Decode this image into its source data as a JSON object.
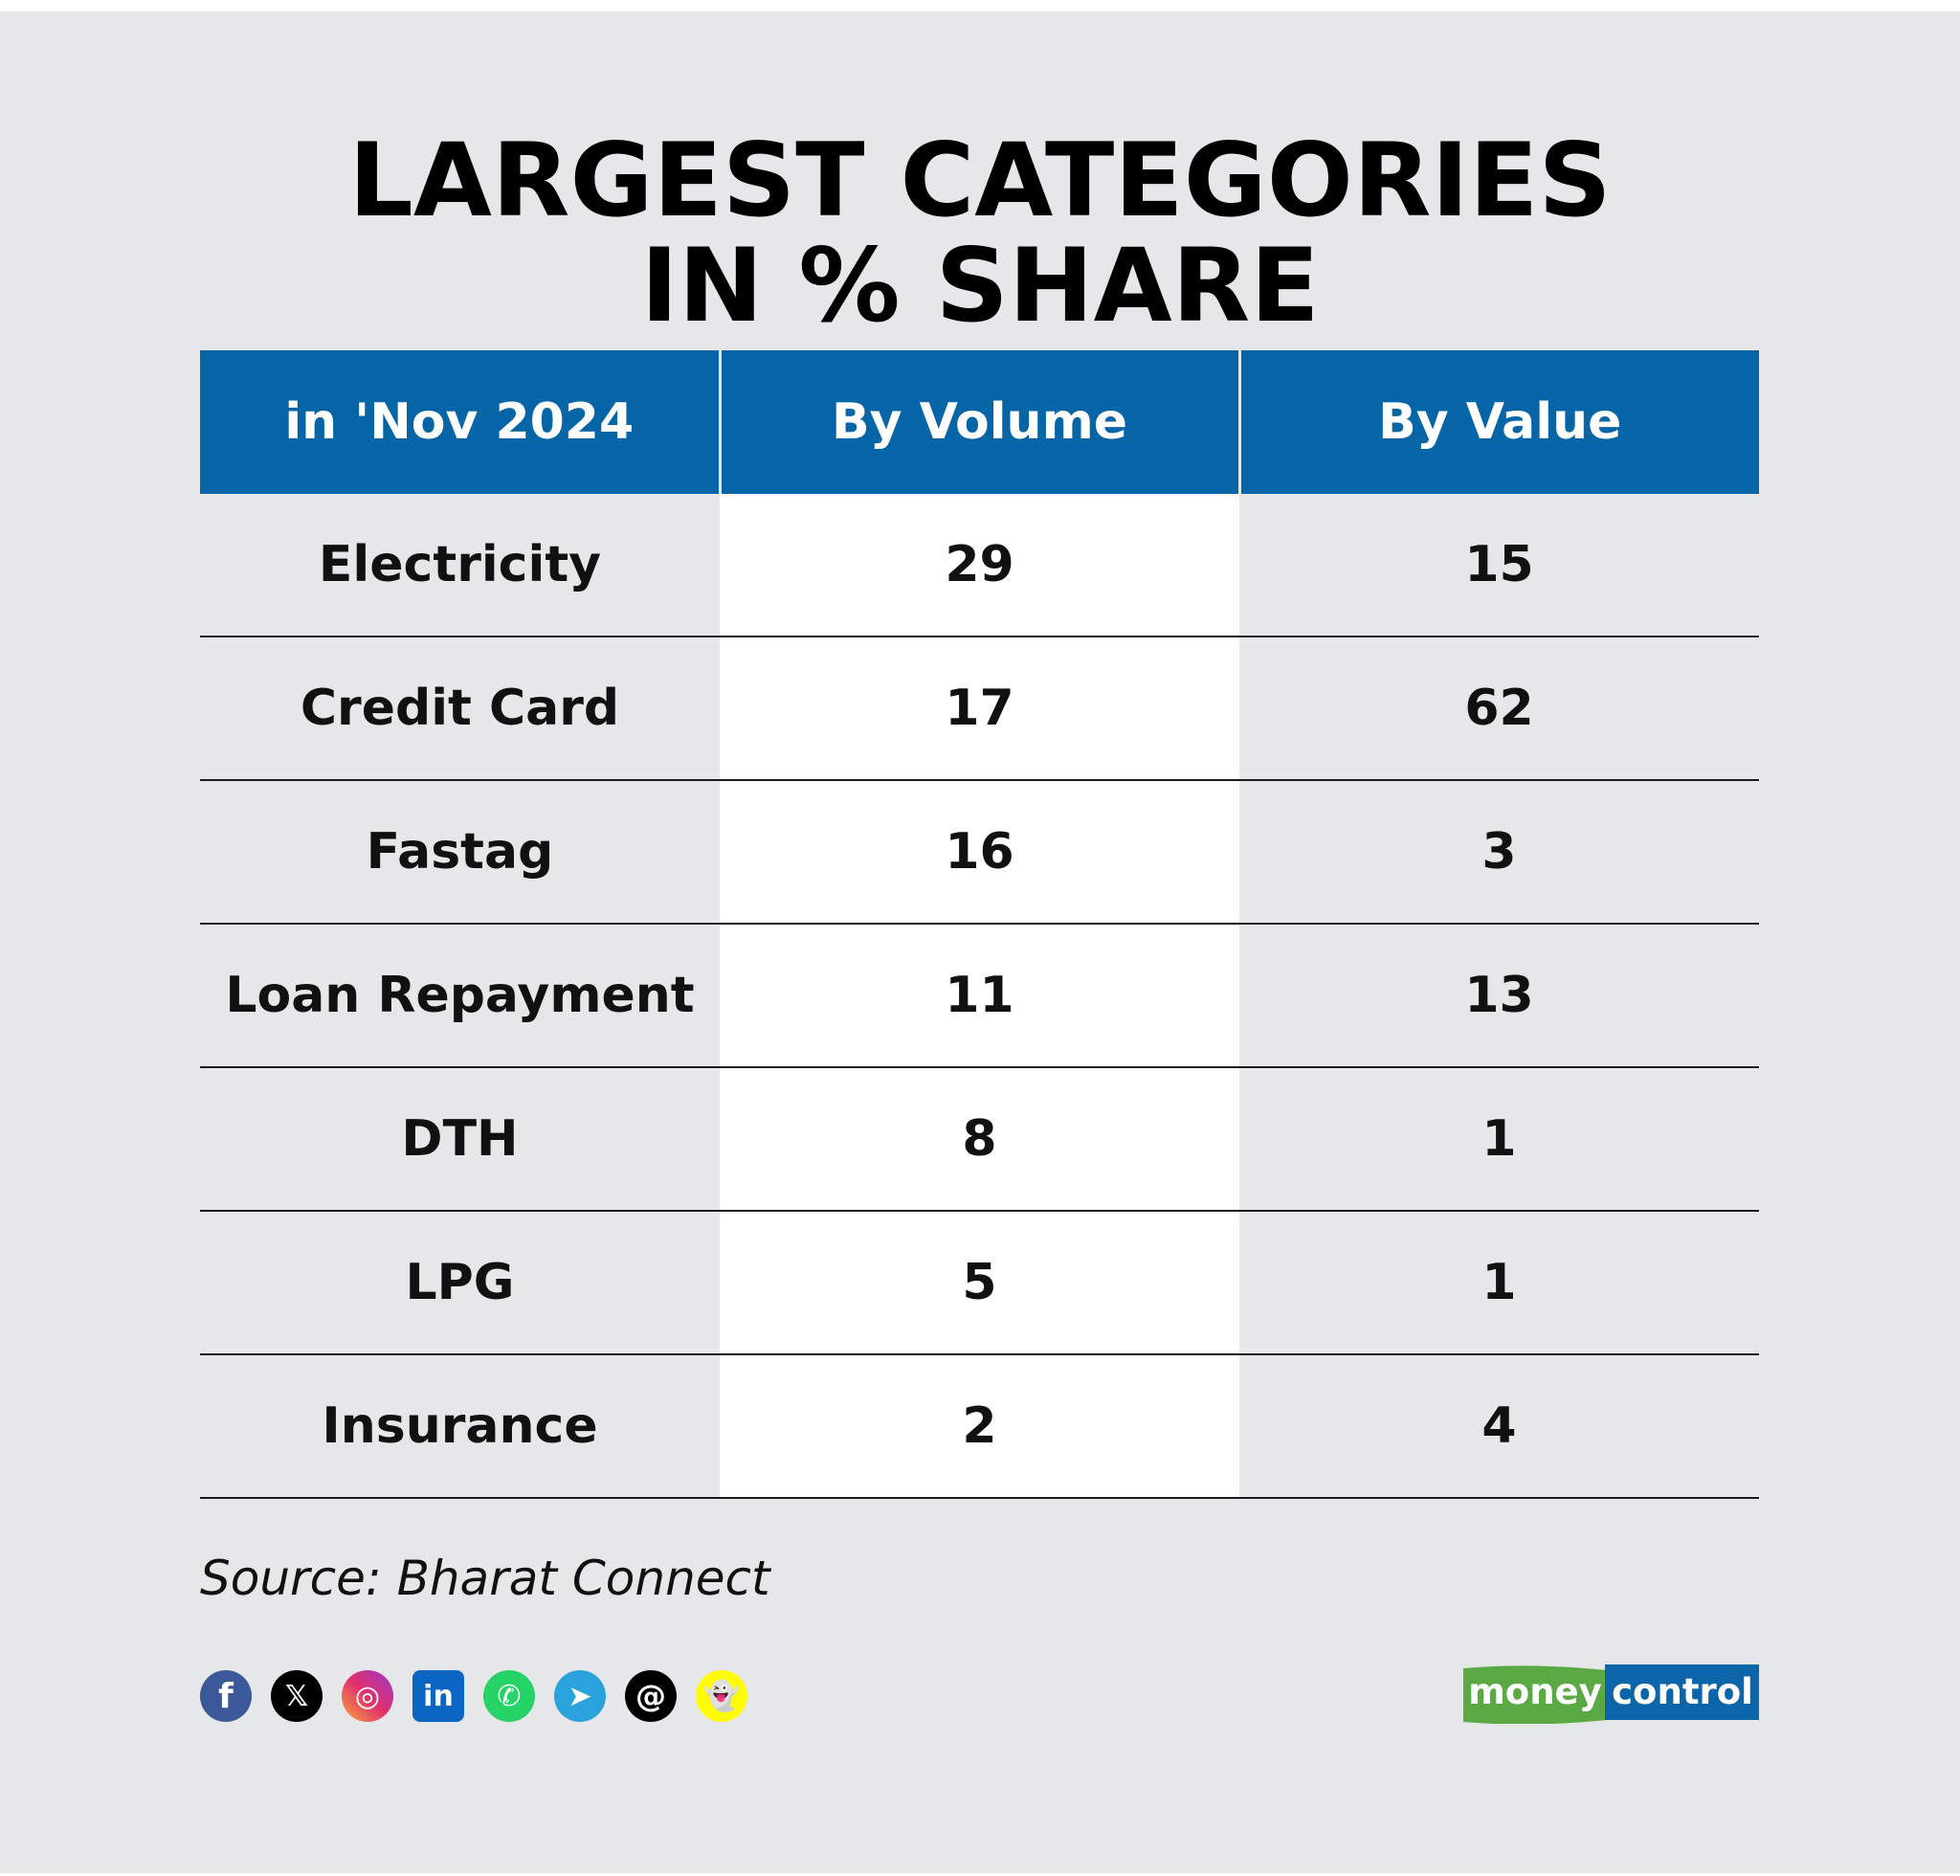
{
  "title": {
    "line1": "LARGEST CATEGORIES",
    "line2": "IN % SHARE"
  },
  "chart_data": {
    "type": "table",
    "title": "LARGEST CATEGORIES IN % SHARE",
    "columns": [
      "in 'Nov 2024",
      "By Volume",
      "By Value"
    ],
    "rows": [
      {
        "category": "Electricity",
        "volume": "29",
        "value": "15"
      },
      {
        "category": "Credit Card",
        "volume": "17",
        "value": "62"
      },
      {
        "category": "Fastag",
        "volume": "16",
        "value": "3"
      },
      {
        "category": "Loan Repayment",
        "volume": "11",
        "value": "13"
      },
      {
        "category": "DTH",
        "volume": "8",
        "value": "1"
      },
      {
        "category": "LPG",
        "volume": "5",
        "value": "1"
      },
      {
        "category": "Insurance",
        "volume": "2",
        "value": "4"
      }
    ]
  },
  "source": "Source: Bharat Connect",
  "socials": [
    {
      "icon": "facebook-icon",
      "glyph": "f"
    },
    {
      "icon": "x-icon",
      "glyph": "𝕏"
    },
    {
      "icon": "instagram-icon",
      "glyph": "◎"
    },
    {
      "icon": "linkedin-icon",
      "glyph": "in"
    },
    {
      "icon": "whatsapp-icon",
      "glyph": "✆"
    },
    {
      "icon": "telegram-icon",
      "glyph": "➤"
    },
    {
      "icon": "threads-icon",
      "glyph": "@"
    },
    {
      "icon": "snapchat-icon",
      "glyph": "👻"
    }
  ],
  "logo": {
    "part1": "money",
    "part2": "control"
  },
  "colors": {
    "header_bg": "#0565a6",
    "page_bg": "#e6e7e9",
    "logo_green": "#5ba944",
    "logo_blue": "#0c65a8"
  }
}
